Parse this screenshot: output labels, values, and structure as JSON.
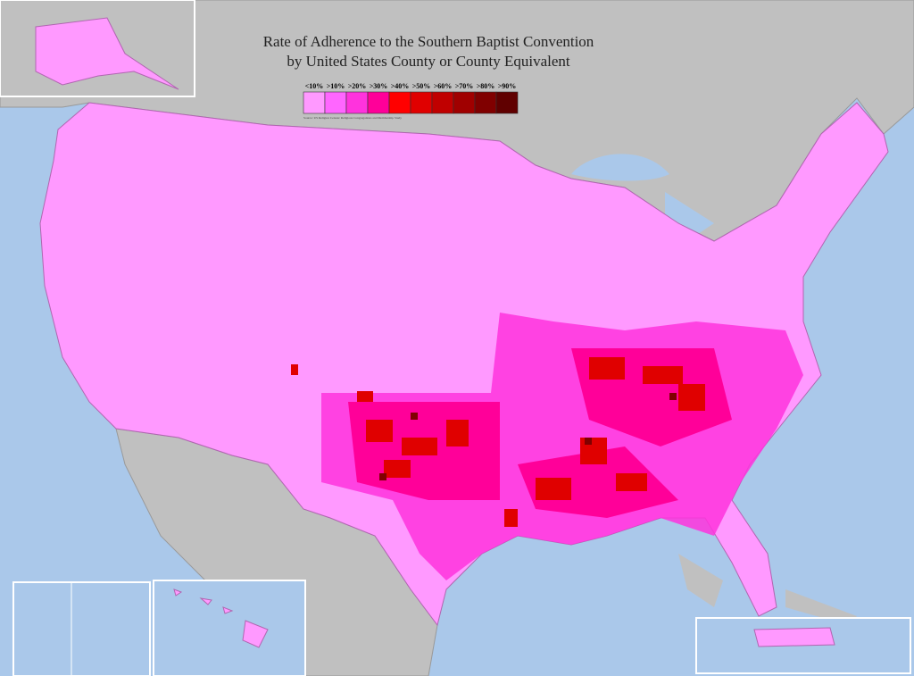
{
  "header": {
    "title_line1": "Rate of Adherence to the Southern Baptist Convention",
    "title_line2": "by United States County or County Equivalent"
  },
  "legend": {
    "items": [
      {
        "label": "<10%",
        "color": "#ff99ff"
      },
      {
        "label": ">10%",
        "color": "#ff66ff"
      },
      {
        "label": ">20%",
        "color": "#ff33dd"
      },
      {
        "label": ">30%",
        "color": "#ff0099"
      },
      {
        "label": ">40%",
        "color": "#ff0000"
      },
      {
        "label": ">50%",
        "color": "#e00000"
      },
      {
        "label": ">60%",
        "color": "#c00000"
      },
      {
        "label": ">70%",
        "color": "#a00000"
      },
      {
        "label": ">80%",
        "color": "#800000"
      },
      {
        "label": ">90%",
        "color": "#600000"
      }
    ],
    "source": "Source: US Religion Census: Religious Congregations and Membership Study"
  }
}
